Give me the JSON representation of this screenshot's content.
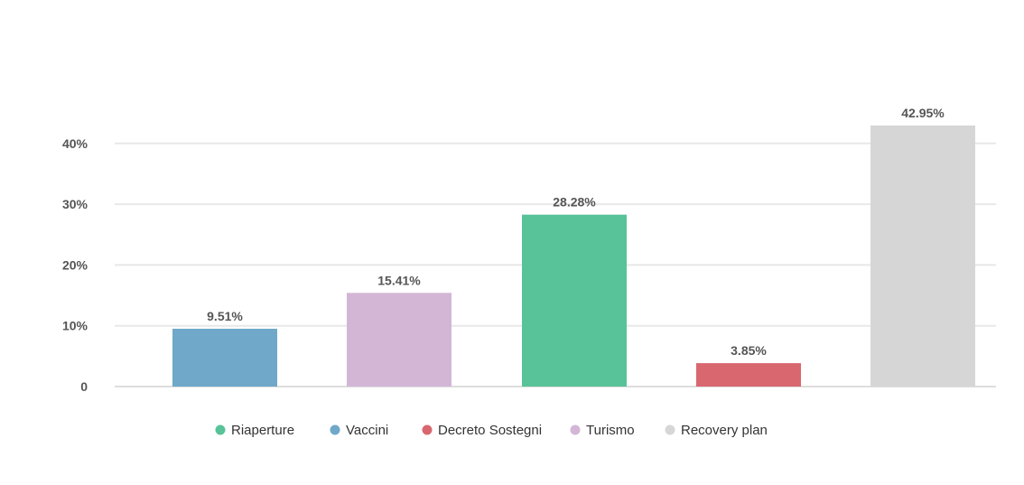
{
  "chart_data": {
    "type": "bar",
    "categories": [
      "Vaccini",
      "Turismo",
      "Riaperture",
      "Decreto Sostegni",
      "Recovery plan"
    ],
    "values": [
      9.51,
      15.41,
      28.28,
      3.85,
      42.95
    ],
    "value_labels": [
      "9.51%",
      "15.41%",
      "28.28%",
      "3.85%",
      "42.95%"
    ],
    "colors": [
      "#6fa8c8",
      "#d3b6d6",
      "#58c299",
      "#d9676f",
      "#d6d6d6"
    ],
    "ylim": [
      0,
      43.5
    ],
    "yticks": [
      {
        "value": 0,
        "label": "0"
      },
      {
        "value": 10,
        "label": "10%"
      },
      {
        "value": 20,
        "label": "20%"
      },
      {
        "value": 30,
        "label": "30%"
      },
      {
        "value": 40,
        "label": "40%"
      }
    ],
    "grid": true,
    "legend_position": "bottom",
    "legend": [
      {
        "label": "Riaperture",
        "color": "#58c299"
      },
      {
        "label": "Vaccini",
        "color": "#6fa8c8"
      },
      {
        "label": "Decreto Sostegni",
        "color": "#d9676f"
      },
      {
        "label": "Turismo",
        "color": "#d3b6d6"
      },
      {
        "label": "Recovery plan",
        "color": "#d6d6d6"
      }
    ],
    "title": "",
    "xlabel": "",
    "ylabel": ""
  }
}
